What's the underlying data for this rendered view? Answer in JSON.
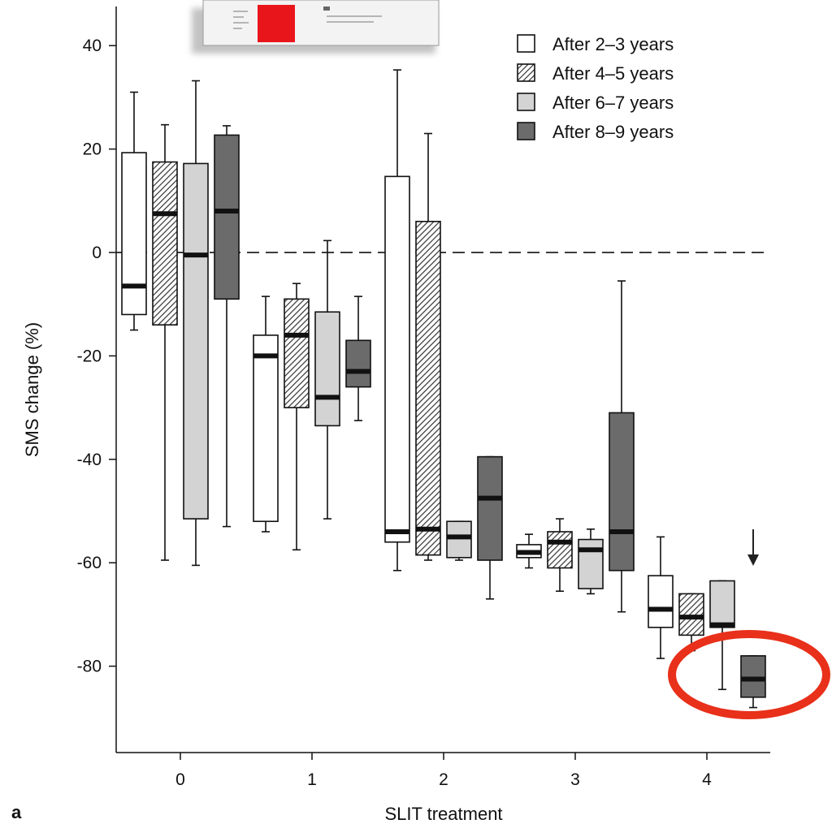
{
  "chart_data": {
    "type": "box",
    "panel_label": "a",
    "xlabel": "SLIT treatment",
    "ylabel": "SMS change (%)",
    "ylim": [
      -96,
      47
    ],
    "yticks": [
      40,
      20,
      0,
      -20,
      -40,
      -60,
      -80
    ],
    "categories": [
      "0",
      "1",
      "2",
      "3",
      "4"
    ],
    "reference_line": {
      "y": 0,
      "style": "dashed"
    },
    "series": [
      {
        "name": "After 2–3 years",
        "fill": "white",
        "color": "#ffffff",
        "boxes": [
          {
            "min": -15,
            "q1": -12,
            "median": -6.5,
            "q3": 19.3,
            "max": 31
          },
          {
            "min": -54,
            "q1": -52,
            "median": -20,
            "q3": -16,
            "max": -8.5
          },
          {
            "min": -61.5,
            "q1": -56,
            "median": -54,
            "q3": 14.7,
            "max": 35.3
          },
          {
            "min": -61,
            "q1": -59,
            "median": -58,
            "q3": -56.5,
            "max": -54.5
          },
          {
            "min": -78.5,
            "q1": -72.5,
            "median": -69,
            "q3": -62.5,
            "max": -55
          }
        ]
      },
      {
        "name": "After 4–5 years",
        "fill": "hatched",
        "color": "#cccccc",
        "boxes": [
          {
            "min": -59.5,
            "q1": -14,
            "median": 7.5,
            "q3": 17.5,
            "max": 24.7
          },
          {
            "min": -57.5,
            "q1": -30,
            "median": -16,
            "q3": -9,
            "max": -6
          },
          {
            "min": -59.5,
            "q1": -58.5,
            "median": -53.5,
            "q3": 6,
            "max": 23
          },
          {
            "min": -65.5,
            "q1": -61,
            "median": -56,
            "q3": -54,
            "max": -51.5
          },
          {
            "min": -77,
            "q1": -74,
            "median": -70.5,
            "q3": -66,
            "max": -66
          }
        ]
      },
      {
        "name": "After 6–7 years",
        "fill": "light-gray",
        "color": "#d3d3d3",
        "boxes": [
          {
            "min": -60.5,
            "q1": -51.5,
            "median": -0.5,
            "q3": 17.2,
            "max": 33.2
          },
          {
            "min": -51.5,
            "q1": -33.5,
            "median": -28,
            "q3": -11.5,
            "max": 2.3
          },
          {
            "min": -59.5,
            "q1": -59,
            "median": -55,
            "q3": -52,
            "max": -52
          },
          {
            "min": -66,
            "q1": -65,
            "median": -57.5,
            "q3": -55.5,
            "max": -53.5
          },
          {
            "min": -84.5,
            "q1": -72.5,
            "median": -72,
            "q3": -63.5,
            "max": -63.5
          }
        ]
      },
      {
        "name": "After 8–9 years",
        "fill": "dark-gray",
        "color": "#6b6b6b",
        "boxes": [
          {
            "min": -53,
            "q1": -9,
            "median": 8,
            "q3": 22.7,
            "max": 24.5
          },
          {
            "min": -32.5,
            "q1": -26,
            "median": -23,
            "q3": -17,
            "max": -8.5
          },
          {
            "min": -67,
            "q1": -59.5,
            "median": -47.5,
            "q3": -39.5,
            "max": -39.5
          },
          {
            "min": -69.5,
            "q1": -61.5,
            "median": -54,
            "q3": -31,
            "max": -5.5
          },
          {
            "min": -88,
            "q1": -86,
            "median": -82.5,
            "q3": -78,
            "max": -78
          }
        ]
      }
    ],
    "legend": {
      "position": "top-right"
    },
    "annotations": [
      {
        "type": "arrow-down",
        "category": "4",
        "series": "After 8–9 years"
      },
      {
        "type": "highlight-ellipse",
        "category": "4",
        "series": "After 8–9 years",
        "color": "#e8301a"
      },
      {
        "type": "inset-thumbnail",
        "position": "top",
        "accent": "#e8161b"
      }
    ]
  }
}
